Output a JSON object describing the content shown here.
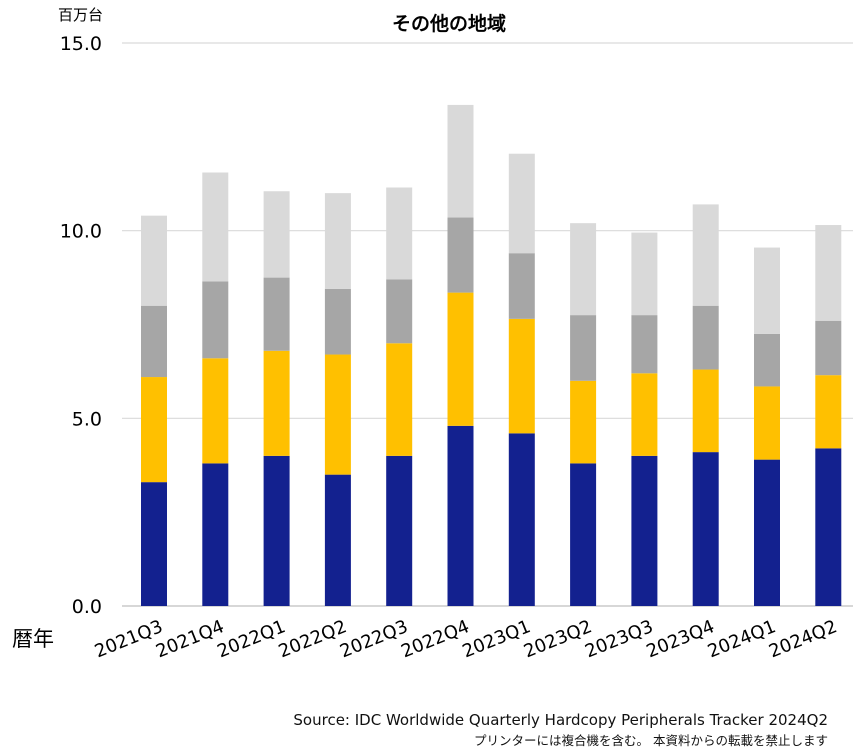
{
  "chart_data": {
    "type": "bar",
    "stacked": true,
    "title": "その他の地域",
    "unit_label": "百万台",
    "xlabel": "暦年",
    "ylim": [
      0,
      15
    ],
    "yticks": [
      "0.0",
      "5.0",
      "10.0",
      "15.0"
    ],
    "grid": true,
    "categories": [
      "2021Q3",
      "2021Q4",
      "2022Q1",
      "2022Q2",
      "2022Q3",
      "2022Q4",
      "2023Q1",
      "2023Q2",
      "2023Q3",
      "2023Q4",
      "2024Q1",
      "2024Q2"
    ],
    "series": [
      {
        "color": "#13218f",
        "values": [
          3.3,
          3.8,
          4.0,
          3.5,
          4.0,
          4.8,
          4.6,
          3.8,
          4.0,
          4.1,
          3.9,
          4.2
        ]
      },
      {
        "color": "#ffc000",
        "values": [
          2.8,
          2.8,
          2.8,
          3.2,
          3.0,
          3.55,
          3.05,
          2.2,
          2.2,
          2.2,
          1.95,
          1.95
        ]
      },
      {
        "color": "#a6a6a6",
        "values": [
          1.9,
          2.05,
          1.95,
          1.75,
          1.7,
          2.0,
          1.75,
          1.75,
          1.55,
          1.7,
          1.4,
          1.45
        ]
      },
      {
        "color": "#d9d9d9",
        "values": [
          2.4,
          2.9,
          2.3,
          2.55,
          2.45,
          3.0,
          2.65,
          2.45,
          2.2,
          2.7,
          2.3,
          2.55
        ]
      }
    ]
  },
  "source": "Source: IDC Worldwide Quarterly Hardcopy Peripherals Tracker 2024Q2",
  "note": "プリンターには複合機を含む。 本資料からの転載を禁止します"
}
